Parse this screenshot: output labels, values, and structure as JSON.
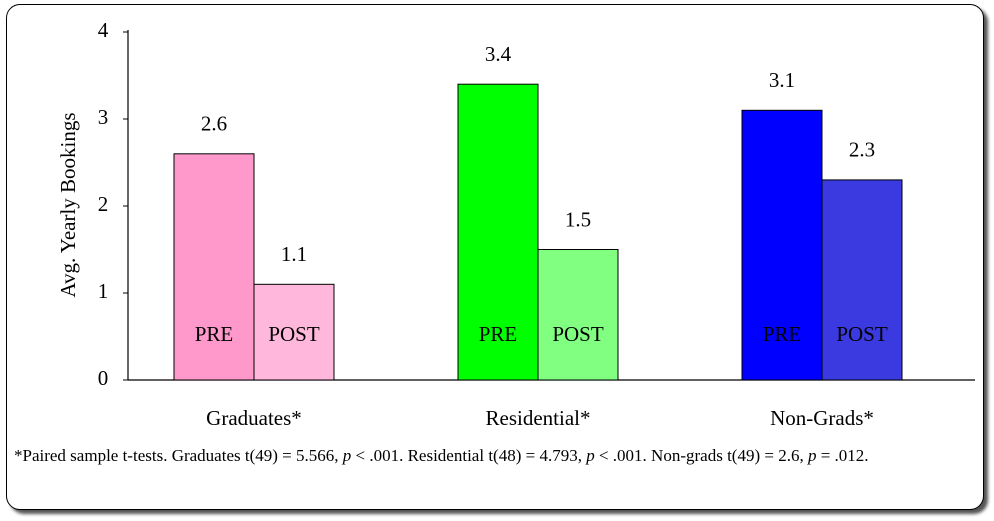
{
  "chart_data": {
    "type": "bar",
    "y_label": "Avg. Yearly Bookings",
    "categories": [
      "Graduates*",
      "Residential*",
      "Non-Grads*"
    ],
    "series": [
      {
        "name": "PRE",
        "colors": [
          "#ff99cc",
          "#00ff00",
          "#0000ff"
        ],
        "values": [
          2.6,
          3.4,
          3.1
        ]
      },
      {
        "name": "POST",
        "colors": [
          "#ffb8dc",
          "#80ff80",
          "#3a3ae0"
        ],
        "values": [
          1.1,
          1.5,
          2.3
        ]
      }
    ],
    "ylim": [
      0,
      4
    ],
    "yticks": [
      0,
      1,
      2,
      3,
      4
    ],
    "grid": false,
    "footnote": [
      "*Paired sample t-tests. Graduates t(49) = 5.566, ",
      "p",
      " < .001. Residential t(48) = 4.793, ",
      "p",
      " < .001. Non-grads t(49) = 2.6, ",
      "p",
      " = .012."
    ]
  }
}
